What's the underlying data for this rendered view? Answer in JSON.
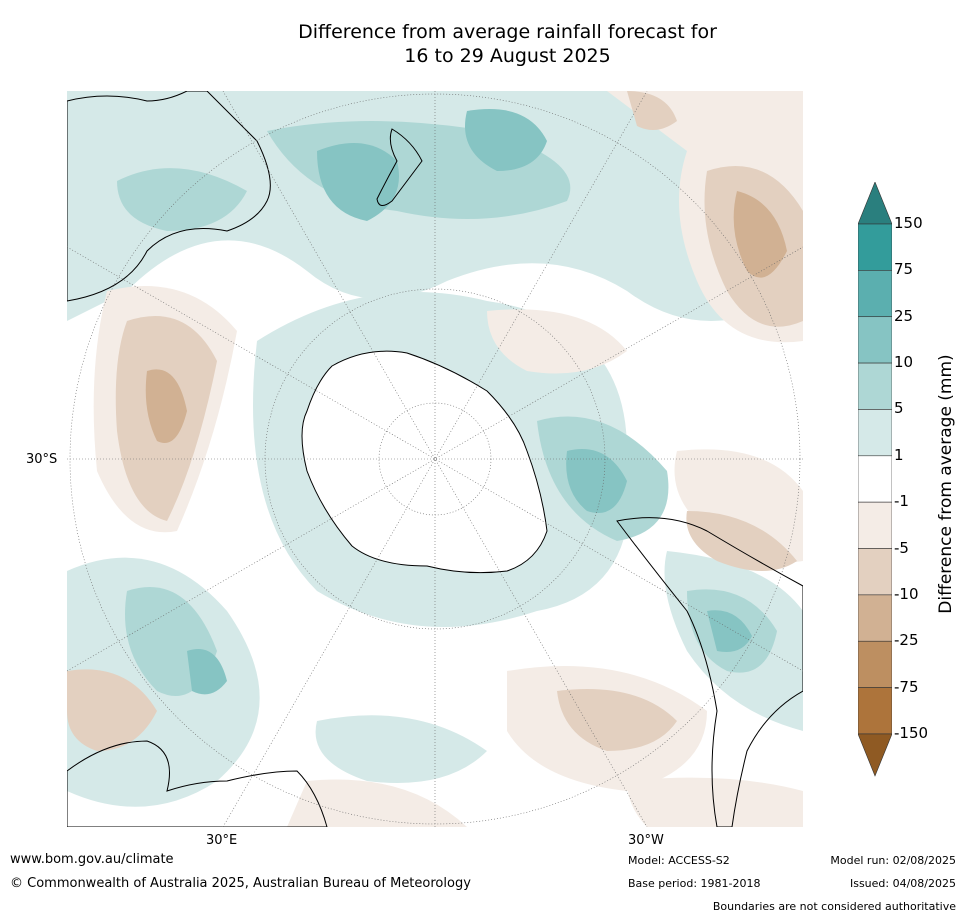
{
  "title": "Difference from average rainfall forecast for\n16 to 29 August 2025",
  "axis_labels": {
    "lat": "30°S",
    "lon_east": "30°E",
    "lon_west": "30°W"
  },
  "colorbar": {
    "title": "Difference from average (mm)",
    "ticks": [
      "150",
      "75",
      "25",
      "10",
      "5",
      "1",
      "-1",
      "-5",
      "-10",
      "-25",
      "-75",
      "-150"
    ],
    "colors": [
      "#2a7f7e",
      "#339c9b",
      "#5bafaf",
      "#86c4c3",
      "#aed7d5",
      "#d5e9e8",
      "#ffffff",
      "#f4ece6",
      "#e3d0c0",
      "#d1b193",
      "#bd8f61",
      "#ad743b",
      "#8f5a23"
    ]
  },
  "footer": {
    "url": "www.bom.gov.au/climate",
    "copyright": "© Commonwealth of Australia 2025, Australian Bureau of Meteorology",
    "model": "Model: ACCESS-S2",
    "base_period": "Base period: 1981-2018",
    "model_run": "Model run: 02/08/2025",
    "issued": "Issued: 04/08/2025",
    "disclaimer": "Boundaries are not considered authoritative"
  }
}
